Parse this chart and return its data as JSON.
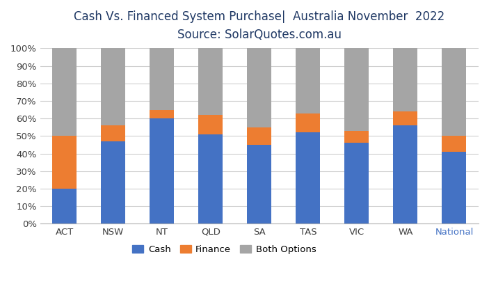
{
  "categories": [
    "ACT",
    "NSW",
    "NT",
    "QLD",
    "SA",
    "TAS",
    "VIC",
    "WA",
    "National"
  ],
  "cash": [
    20,
    47,
    60,
    51,
    45,
    52,
    46,
    56,
    41
  ],
  "finance": [
    30,
    9,
    5,
    11,
    10,
    11,
    7,
    8,
    9
  ],
  "both": [
    50,
    44,
    35,
    38,
    45,
    37,
    47,
    36,
    50
  ],
  "cash_color": "#4472c4",
  "finance_color": "#ed7d31",
  "both_color": "#a5a5a5",
  "title_line1": "Cash Vs. Financed System Purchase|  Australia November  2022",
  "title_line2": "Source: SolarQuotes.com.au",
  "title_fontsize": 12,
  "subtitle_fontsize": 12,
  "ylabel_ticks": [
    "0%",
    "10%",
    "20%",
    "30%",
    "40%",
    "50%",
    "60%",
    "70%",
    "80%",
    "90%",
    "100%"
  ],
  "ytick_values": [
    0,
    10,
    20,
    30,
    40,
    50,
    60,
    70,
    80,
    90,
    100
  ],
  "legend_labels": [
    "Cash",
    "Finance",
    "Both Options"
  ],
  "background_color": "#ffffff",
  "national_label_color": "#4472c4",
  "title_color": "#1f3864",
  "axis_tick_color": "#404040"
}
